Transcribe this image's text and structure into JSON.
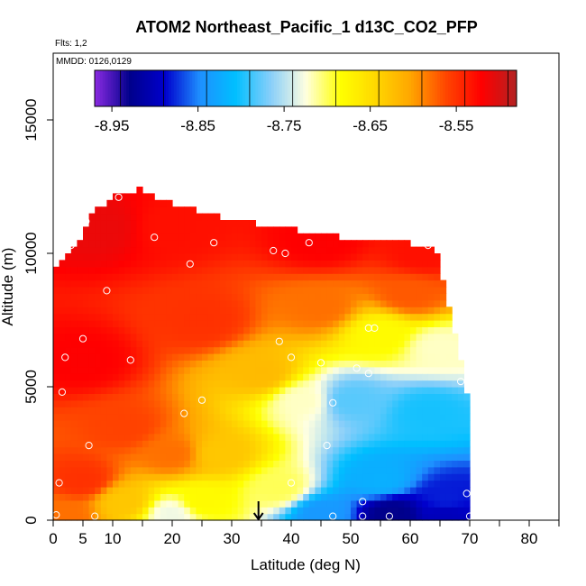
{
  "chart_data": {
    "type": "heatmap",
    "title": "ATOM2 Northeast_Pacific_1 d13C_CO2_PFP",
    "annotations": {
      "flights": "Flts: 1,2",
      "dates": "MMDD: 0126,0129"
    },
    "xlabel": "Latitude (deg N)",
    "ylabel": "Altitude (m)",
    "xlim": [
      0,
      85
    ],
    "ylim": [
      0,
      17500
    ],
    "xticks": [
      0,
      5,
      10,
      20,
      30,
      40,
      50,
      60,
      70,
      80
    ],
    "yticks": [
      0,
      5000,
      10000,
      15000
    ],
    "colorbar": {
      "min": -8.97,
      "max": -8.48,
      "ticks": [
        -8.95,
        -8.85,
        -8.75,
        -8.65,
        -8.55
      ],
      "tick_labels": [
        "-8.95",
        "-8.85",
        "-8.75",
        "-8.65",
        "-8.55"
      ],
      "colors": [
        "#8b2be2",
        "#00008b",
        "#0000cd",
        "#1e90ff",
        "#00bfff",
        "#87cefa",
        "#ffffe0",
        "#ffff00",
        "#ffd700",
        "#ffa500",
        "#ff4500",
        "#ff0000",
        "#b22222"
      ]
    },
    "domain_top": [
      [
        4,
        10300
      ],
      [
        6,
        11300
      ],
      [
        10,
        12200
      ],
      [
        15,
        12400
      ],
      [
        18,
        12000
      ],
      [
        29,
        11300
      ],
      [
        40,
        10900
      ],
      [
        52,
        10500
      ],
      [
        64,
        10300
      ],
      [
        65,
        9500
      ],
      [
        66,
        8500
      ],
      [
        67,
        7500
      ],
      [
        68,
        6500
      ],
      [
        69,
        5500
      ],
      [
        70,
        4000
      ],
      [
        70,
        300
      ]
    ],
    "field_centers": [
      {
        "lat": 8,
        "alt": 11000,
        "value": -8.51
      },
      {
        "lat": 20,
        "alt": 11000,
        "value": -8.53
      },
      {
        "lat": 45,
        "alt": 10500,
        "value": -8.52
      },
      {
        "lat": 62,
        "alt": 10000,
        "value": -8.53
      },
      {
        "lat": 5,
        "alt": 6000,
        "value": -8.52
      },
      {
        "lat": 25,
        "alt": 7500,
        "value": -8.55
      },
      {
        "lat": 45,
        "alt": 8000,
        "value": -8.58
      },
      {
        "lat": 60,
        "alt": 8500,
        "value": -8.57
      },
      {
        "lat": 55,
        "alt": 7000,
        "value": -8.68
      },
      {
        "lat": 65,
        "alt": 6500,
        "value": -8.72
      },
      {
        "lat": 35,
        "alt": 5500,
        "value": -8.62
      },
      {
        "lat": 42,
        "alt": 4500,
        "value": -8.72
      },
      {
        "lat": 50,
        "alt": 4500,
        "value": -8.78
      },
      {
        "lat": 63,
        "alt": 4000,
        "value": -8.8
      },
      {
        "lat": 55,
        "alt": 1500,
        "value": -8.82
      },
      {
        "lat": 66,
        "alt": 800,
        "value": -8.88
      },
      {
        "lat": 12,
        "alt": 3500,
        "value": -8.56
      },
      {
        "lat": 20,
        "alt": 2500,
        "value": -8.58
      },
      {
        "lat": 28,
        "alt": 2500,
        "value": -8.63
      },
      {
        "lat": 5,
        "alt": 1500,
        "value": -8.55
      },
      {
        "lat": 12,
        "alt": 700,
        "value": -8.63
      },
      {
        "lat": 25,
        "alt": 700,
        "value": -8.68
      },
      {
        "lat": 38,
        "alt": 1200,
        "value": -8.7
      },
      {
        "lat": 20,
        "alt": 250,
        "value": -8.73
      },
      {
        "lat": 45,
        "alt": 250,
        "value": -8.84
      },
      {
        "lat": 57,
        "alt": 250,
        "value": -8.93
      },
      {
        "lat": 66,
        "alt": 200,
        "value": -8.9
      },
      {
        "lat": 2,
        "alt": 200,
        "value": -8.58
      }
    ],
    "sample_points": [
      {
        "lat": 11,
        "alt": 12100
      },
      {
        "lat": 17,
        "alt": 12500
      },
      {
        "lat": 4,
        "alt": 11200
      },
      {
        "lat": 5.5,
        "alt": 11200
      },
      {
        "lat": 3,
        "alt": 10300
      },
      {
        "lat": 17,
        "alt": 10600
      },
      {
        "lat": 27,
        "alt": 10400
      },
      {
        "lat": 37,
        "alt": 10100
      },
      {
        "lat": 39,
        "alt": 10000
      },
      {
        "lat": 43,
        "alt": 10400
      },
      {
        "lat": 63,
        "alt": 10300
      },
      {
        "lat": 23,
        "alt": 9600
      },
      {
        "lat": 9,
        "alt": 8600
      },
      {
        "lat": 5,
        "alt": 6800
      },
      {
        "lat": 38,
        "alt": 6700
      },
      {
        "lat": 2,
        "alt": 6100
      },
      {
        "lat": 13,
        "alt": 6000
      },
      {
        "lat": 40,
        "alt": 6100
      },
      {
        "lat": 45,
        "alt": 5900
      },
      {
        "lat": 51,
        "alt": 5700
      },
      {
        "lat": 53,
        "alt": 5500
      },
      {
        "lat": 53,
        "alt": 7200
      },
      {
        "lat": 54,
        "alt": 7200
      },
      {
        "lat": 68.5,
        "alt": 5200
      },
      {
        "lat": 1.5,
        "alt": 4800
      },
      {
        "lat": 25,
        "alt": 4500
      },
      {
        "lat": 47,
        "alt": 4400
      },
      {
        "lat": 22,
        "alt": 4000
      },
      {
        "lat": 6,
        "alt": 2800
      },
      {
        "lat": 46,
        "alt": 2800
      },
      {
        "lat": 1,
        "alt": 1400
      },
      {
        "lat": 40,
        "alt": 1400
      },
      {
        "lat": 69.5,
        "alt": 1000
      },
      {
        "lat": 52,
        "alt": 700
      },
      {
        "lat": 0.5,
        "alt": 200
      },
      {
        "lat": 7,
        "alt": 150
      },
      {
        "lat": 47,
        "alt": 150
      },
      {
        "lat": 52,
        "alt": 150
      },
      {
        "lat": 56.5,
        "alt": 150
      },
      {
        "lat": 70,
        "alt": 150
      }
    ],
    "marker": {
      "lat": 34.5,
      "alt": 0,
      "label": "arrow"
    }
  }
}
